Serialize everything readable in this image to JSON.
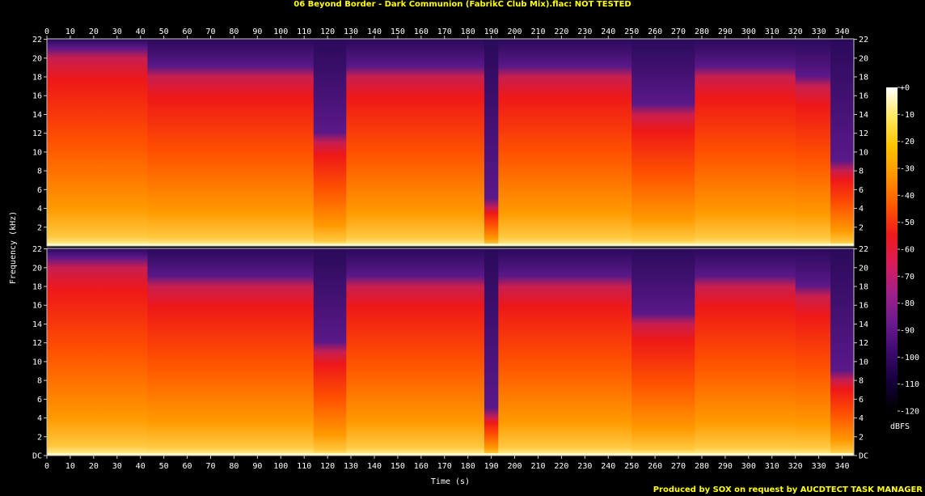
{
  "title": "06 Beyond Border - Dark Communion (FabrikC Club Mix).flac: NOT TESTED",
  "footer": "Produced by SOX on request by AUCDTECT TASK MANAGER",
  "chart_data": {
    "type": "heatmap",
    "title": "06 Beyond Border - Dark Communion (FabrikC Club Mix).flac: NOT TESTED",
    "xlabel": "Time (s)",
    "ylabel": "Frequency (kHz)",
    "xlim": [
      0,
      345
    ],
    "ylim": [
      0,
      22.05
    ],
    "x_ticks": [
      0,
      10,
      20,
      30,
      40,
      50,
      60,
      70,
      80,
      90,
      100,
      110,
      120,
      130,
      140,
      150,
      160,
      170,
      180,
      190,
      200,
      210,
      220,
      230,
      240,
      250,
      260,
      270,
      280,
      290,
      300,
      310,
      320,
      330,
      340
    ],
    "y_tick_labels_top": [
      "22",
      "20",
      "18",
      "16",
      "14",
      "12",
      "10",
      "8",
      "6",
      "4",
      "2"
    ],
    "y_tick_labels_bottom": [
      "22",
      "20",
      "18",
      "16",
      "14",
      "12",
      "10",
      "8",
      "6",
      "4",
      "2",
      "DC"
    ],
    "y_ticks_top": [
      22,
      20,
      18,
      16,
      14,
      12,
      10,
      8,
      6,
      4,
      2
    ],
    "y_ticks_bottom": [
      22,
      20,
      18,
      16,
      14,
      12,
      10,
      8,
      6,
      4,
      2,
      0
    ],
    "bottom_label": "DC",
    "channels": [
      "left",
      "right"
    ],
    "colorbar": {
      "label": "dBFS",
      "ticks": [
        "+0",
        "-10",
        "-20",
        "-30",
        "-40",
        "-50",
        "-60",
        "-70",
        "-80",
        "-90",
        "-100",
        "-110",
        "-120"
      ],
      "range": [
        -120,
        0
      ]
    },
    "colormap_stops": [
      "#000000",
      "#14003a",
      "#3c0a6e",
      "#6b1a8e",
      "#a0208a",
      "#d81c5a",
      "#ef1a1a",
      "#ff5a00",
      "#ff9500",
      "#ffc300",
      "#ffe860",
      "#ffffff"
    ],
    "segments": [
      {
        "start": 0,
        "end": 43,
        "top_khz": 20.0
      },
      {
        "start": 43,
        "end": 114,
        "top_khz": 18.0
      },
      {
        "start": 114,
        "end": 128,
        "top_khz": 11.0
      },
      {
        "start": 128,
        "end": 187,
        "top_khz": 18.0
      },
      {
        "start": 187,
        "end": 193,
        "top_khz": 4.0
      },
      {
        "start": 193,
        "end": 250,
        "top_khz": 18.0
      },
      {
        "start": 250,
        "end": 277,
        "top_khz": 14.0
      },
      {
        "start": 277,
        "end": 320,
        "top_khz": 18.0
      },
      {
        "start": 320,
        "end": 335,
        "top_khz": 17.0
      },
      {
        "start": 335,
        "end": 345,
        "top_khz": 8.0
      }
    ]
  }
}
